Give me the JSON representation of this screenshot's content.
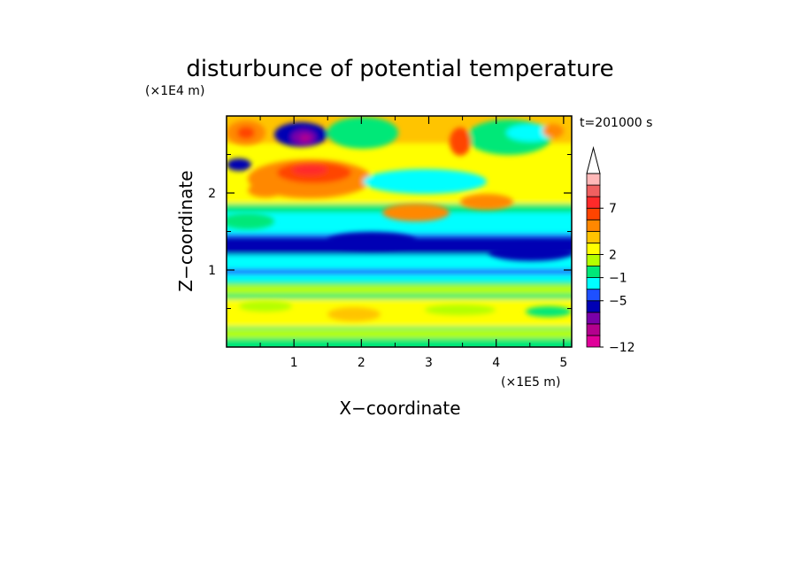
{
  "chart_data": {
    "type": "heatmap",
    "title": "disturbunce of potential temperature",
    "time_label": "t=201000 s",
    "xlabel": "X−coordinate",
    "ylabel": "Z−coordinate",
    "x_scale_label": "(×1E5 m)",
    "y_scale_label": "(×1E4 m)",
    "xlim": [
      0,
      5.12
    ],
    "ylim": [
      0,
      3.0
    ],
    "x_ticks": [
      {
        "value": 1,
        "label": "1"
      },
      {
        "value": 2,
        "label": "2"
      },
      {
        "value": 3,
        "label": "3"
      },
      {
        "value": 4,
        "label": "4"
      },
      {
        "value": 5,
        "label": "5"
      }
    ],
    "y_ticks": [
      {
        "value": 1,
        "label": "1"
      },
      {
        "value": 2,
        "label": "2"
      }
    ],
    "colorbar": {
      "labels": [
        {
          "level": 7,
          "label": "7"
        },
        {
          "level": 2,
          "label": "2"
        },
        {
          "level": -1,
          "label": "−1"
        },
        {
          "level": -5,
          "label": "−5"
        },
        {
          "level": -12,
          "label": "−12"
        }
      ],
      "colors_bottom_to_top": [
        "#e0009a",
        "#b4008e",
        "#7a00a8",
        "#0000b4",
        "#1e50ff",
        "#00ffff",
        "#00e878",
        "#b4ff00",
        "#ffff00",
        "#ffc400",
        "#ff8800",
        "#ff4400",
        "#ff2a2a",
        "#f06060",
        "#ffb8b8"
      ],
      "extend": "max"
    },
    "features": [
      {
        "name": "bottom-warm-layer",
        "level": 2,
        "z_range": [
          0.2,
          0.7
        ]
      },
      {
        "name": "cold-band-lower",
        "level": -5,
        "z_range": [
          0.9,
          1.3
        ]
      },
      {
        "name": "warm-upper-plume",
        "level": 7,
        "x_center": 1.4,
        "z_center": 2.3
      },
      {
        "name": "cold-core-top",
        "level": -12,
        "x_center": 1.1,
        "z_center": 2.8
      }
    ],
    "grid": false,
    "legend_position": "right"
  }
}
